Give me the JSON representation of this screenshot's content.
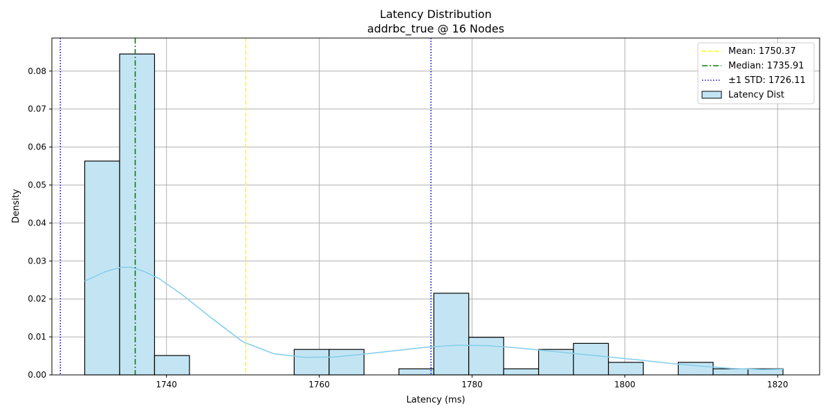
{
  "chart_data": {
    "type": "bar",
    "title": "Latency Distribution",
    "subtitle": "addrbc_true @ 16 Nodes",
    "xlabel": "Latency (ms)",
    "ylabel": "Density",
    "xlim": [
      1725.0,
      1825.5
    ],
    "ylim": [
      0,
      0.0887
    ],
    "xticks": [
      1740,
      1760,
      1780,
      1800,
      1820
    ],
    "yticks": [
      0.0,
      0.01,
      0.02,
      0.03,
      0.04,
      0.05,
      0.06,
      0.07,
      0.08
    ],
    "xtick_labels": [
      "1740",
      "1760",
      "1780",
      "1800",
      "1820"
    ],
    "ytick_labels": [
      "0.00",
      "0.01",
      "0.02",
      "0.03",
      "0.04",
      "0.05",
      "0.06",
      "0.07",
      "0.08"
    ],
    "grid": true,
    "legend_position": "top-right",
    "bin_edges": [
      1729.3,
      1733.87,
      1738.44,
      1743.01,
      1747.58,
      1752.15,
      1756.72,
      1761.29,
      1765.86,
      1770.43,
      1775.0,
      1779.57,
      1784.14,
      1788.71,
      1793.28,
      1797.85,
      1802.42,
      1806.99,
      1811.56,
      1816.13,
      1820.7
    ],
    "series": [
      {
        "name": "Latency Dist",
        "values": [
          0.0563,
          0.0845,
          0.0051,
          0.0,
          0.0,
          0.0,
          0.0067,
          0.0067,
          0.0,
          0.0016,
          0.0215,
          0.0099,
          0.0016,
          0.0067,
          0.0083,
          0.0033,
          0.0,
          0.0033,
          0.0016,
          0.0016
        ],
        "color": "#c3e5f3",
        "edge_color": "#000000"
      }
    ],
    "kde": {
      "color": "#87ceeb",
      "x": [
        1729.3,
        1732,
        1734,
        1735.5,
        1737,
        1739,
        1742,
        1746,
        1750,
        1754,
        1758,
        1762,
        1766,
        1770,
        1774,
        1778,
        1782,
        1786,
        1790,
        1794,
        1798,
        1802,
        1806,
        1810,
        1814,
        1818,
        1820.7
      ],
      "y": [
        0.0247,
        0.0272,
        0.0283,
        0.0283,
        0.0273,
        0.0254,
        0.0212,
        0.0148,
        0.0087,
        0.0056,
        0.0046,
        0.0047,
        0.0055,
        0.0064,
        0.0073,
        0.0078,
        0.0077,
        0.0071,
        0.0063,
        0.0055,
        0.0047,
        0.0039,
        0.003,
        0.0023,
        0.0017,
        0.0014,
        0.0015
      ]
    },
    "lines": [
      {
        "key": "mean",
        "label": "Mean: 1750.37",
        "x": 1750.37,
        "color": "#ffff00",
        "dash": "6,3"
      },
      {
        "key": "median",
        "label": "Median: 1735.91",
        "x": 1735.91,
        "color": "#008000",
        "dash": "8,3,2,3"
      },
      {
        "key": "std",
        "label": "±1 STD: 1726.11",
        "x": 1726.11,
        "x2": 1774.63,
        "color": "#0000cd",
        "dash": "1.5,2.5"
      }
    ],
    "legend": [
      {
        "label": "Mean: 1750.37",
        "kind": "line",
        "color": "#ffff00",
        "dash": "6,3"
      },
      {
        "label": "Median: 1735.91",
        "kind": "line",
        "color": "#008000",
        "dash": "8,3,2,3"
      },
      {
        "label": "±1 STD: 1726.11",
        "kind": "line",
        "color": "#0000cd",
        "dash": "1.5,2.5"
      },
      {
        "label": "Latency Dist",
        "kind": "patch",
        "color": "#c3e5f3"
      }
    ]
  }
}
